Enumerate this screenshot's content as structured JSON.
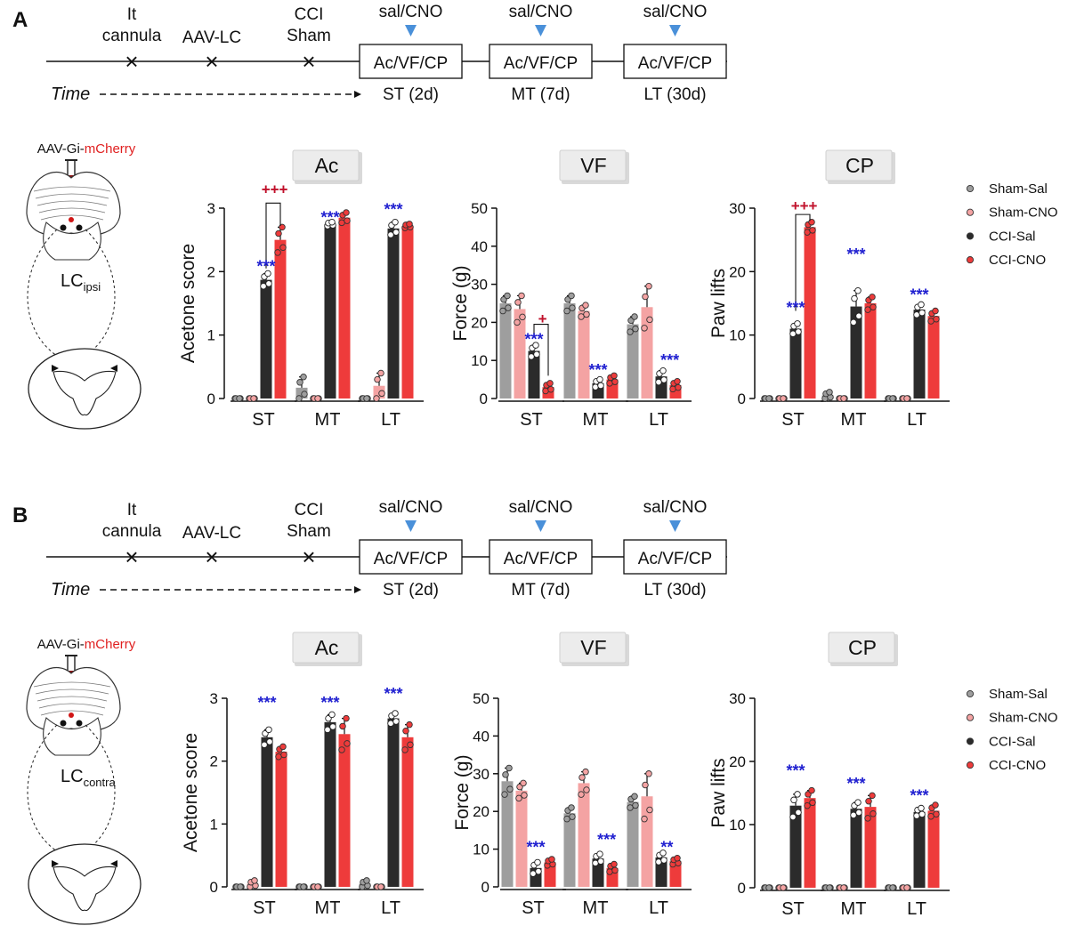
{
  "panels": [
    {
      "letter": "A",
      "timeline": {
        "events": [
          "It\ncannula",
          "AAV-LC",
          "CCI\nSham"
        ],
        "treatment": "sal/CNO",
        "test_box": "Ac/VF/CP",
        "time_label": "Time",
        "timepoints": [
          "ST (2d)",
          "MT (7d)",
          "LT (30d)"
        ]
      },
      "brain": {
        "virus_prefix": "AAV-Gi-",
        "virus_suffix": "mCherry",
        "lc_main": "LC",
        "lc_sub": "ipsi"
      }
    },
    {
      "letter": "B",
      "timeline": {
        "events": [
          "It\ncannula",
          "AAV-LC",
          "CCI\nSham"
        ],
        "treatment": "sal/CNO",
        "test_box": "Ac/VF/CP",
        "time_label": "Time",
        "timepoints": [
          "ST (2d)",
          "MT (7d)",
          "LT (30d)"
        ]
      },
      "brain": {
        "virus_prefix": "AAV-Gi-",
        "virus_suffix": "mCherry",
        "lc_main": "LC",
        "lc_sub": "contra"
      }
    }
  ],
  "legend": [
    {
      "label": "Sham-Sal",
      "color": "#9e9e9e"
    },
    {
      "label": "Sham-CNO",
      "color": "#f4a3a3"
    },
    {
      "label": "CCI-Sal",
      "color": "#2b2b2b"
    },
    {
      "label": "CCI-CNO",
      "color": "#ee3b3b"
    }
  ],
  "colors": {
    "sig_blue": "#1f1fd0",
    "sig_red": "#c0102a",
    "arrow": "#4a90d9"
  },
  "chart_data": [
    {
      "panel": "A",
      "title": "Ac",
      "type": "bar",
      "ylabel": "Acetone score",
      "ylim": [
        0,
        3
      ],
      "yticks": [
        0,
        1,
        2,
        3
      ],
      "categories": [
        "ST",
        "MT",
        "LT"
      ],
      "series": [
        {
          "name": "Sham-Sal",
          "values": [
            0,
            0.17,
            0
          ],
          "errors": [
            0,
            0.17,
            0
          ]
        },
        {
          "name": "Sham-CNO",
          "values": [
            0,
            0,
            0.2
          ],
          "errors": [
            0,
            0,
            0.2
          ]
        },
        {
          "name": "CCI-Sal",
          "values": [
            1.87,
            2.75,
            2.68
          ],
          "errors": [
            0.1,
            0.03,
            0.1
          ]
        },
        {
          "name": "CCI-CNO",
          "values": [
            2.5,
            2.85,
            2.72
          ],
          "errors": [
            0.2,
            0.08,
            0.03
          ]
        }
      ],
      "annotations": [
        {
          "text": "***",
          "group": 0,
          "bar": 2,
          "value": 2.08,
          "color": "blue"
        },
        {
          "text": "***",
          "group": 1,
          "bar": 2,
          "value": 2.85,
          "color": "blue"
        },
        {
          "text": "***",
          "group": 2,
          "bar": 2,
          "value": 2.98,
          "color": "blue"
        },
        {
          "text": "+++",
          "group": 0,
          "bar": 2.6,
          "value": 3.3,
          "color": "red"
        }
      ],
      "bracket": {
        "group": 0,
        "from": 2,
        "to": 3,
        "value": 3.08,
        "value_left": 2.05,
        "value_right": 2.72
      }
    },
    {
      "panel": "A",
      "title": "VF",
      "type": "bar",
      "ylabel": "Force (g)",
      "ylim": [
        0,
        50
      ],
      "yticks": [
        0,
        10,
        20,
        30,
        40,
        50
      ],
      "categories": [
        "ST",
        "MT",
        "LT"
      ],
      "series": [
        {
          "name": "Sham-Sal",
          "values": [
            25,
            25,
            19.5
          ],
          "errors": [
            2,
            2,
            2
          ]
        },
        {
          "name": "Sham-CNO",
          "values": [
            23.5,
            23,
            24
          ],
          "errors": [
            3.5,
            1.5,
            5.5
          ]
        },
        {
          "name": "CCI-Sal",
          "values": [
            12.5,
            4,
            5.8
          ],
          "errors": [
            1.5,
            1,
            1.5
          ]
        },
        {
          "name": "CCI-CNO",
          "values": [
            3,
            5,
            3.5
          ],
          "errors": [
            1,
            1,
            1
          ]
        }
      ],
      "annotations": [
        {
          "text": "***",
          "group": 0,
          "bar": 2,
          "value": 15.5,
          "color": "blue"
        },
        {
          "text": "***",
          "group": 1,
          "bar": 2,
          "value": 7.5,
          "color": "blue"
        },
        {
          "text": "***",
          "group": 2,
          "bar": 2.6,
          "value": 10,
          "color": "blue"
        },
        {
          "text": "+",
          "group": 0,
          "bar": 2.6,
          "value": 21,
          "color": "red"
        }
      ],
      "bracket": {
        "group": 0,
        "from": 2,
        "to": 3,
        "value": 19.5,
        "value_left": 16,
        "value_right": 6
      }
    },
    {
      "panel": "A",
      "title": "CP",
      "type": "bar",
      "ylabel": "Paw lifts",
      "ylim": [
        0,
        30
      ],
      "yticks": [
        0,
        10,
        20,
        30
      ],
      "categories": [
        "ST",
        "MT",
        "LT"
      ],
      "series": [
        {
          "name": "Sham-Sal",
          "values": [
            0,
            0.5,
            0
          ],
          "errors": [
            0,
            0.5,
            0
          ]
        },
        {
          "name": "Sham-CNO",
          "values": [
            0,
            0,
            0
          ],
          "errors": [
            0,
            0,
            0
          ]
        },
        {
          "name": "CCI-Sal",
          "values": [
            11,
            14.5,
            14
          ],
          "errors": [
            0.8,
            2.5,
            0.8
          ]
        },
        {
          "name": "CCI-CNO",
          "values": [
            27,
            15,
            13
          ],
          "errors": [
            0.8,
            1,
            0.8
          ]
        }
      ],
      "annotations": [
        {
          "text": "***",
          "group": 0,
          "bar": 2,
          "value": 14.3,
          "color": "blue"
        },
        {
          "text": "***",
          "group": 1,
          "bar": 2,
          "value": 22.7,
          "color": "blue"
        },
        {
          "text": "***",
          "group": 2,
          "bar": 2,
          "value": 16.3,
          "color": "blue"
        },
        {
          "text": "+++",
          "group": 0,
          "bar": 2.6,
          "value": 30.4,
          "color": "red"
        }
      ],
      "bracket": {
        "group": 0,
        "from": 2,
        "to": 3,
        "value": 29,
        "value_left": 13.8,
        "value_right": 28
      }
    },
    {
      "panel": "B",
      "title": "Ac",
      "type": "bar",
      "ylabel": "Acetone score",
      "ylim": [
        0,
        3
      ],
      "yticks": [
        0,
        1,
        2,
        3
      ],
      "categories": [
        "ST",
        "MT",
        "LT"
      ],
      "series": [
        {
          "name": "Sham-Sal",
          "values": [
            0,
            0,
            0.05
          ],
          "errors": [
            0,
            0,
            0.05
          ]
        },
        {
          "name": "Sham-CNO",
          "values": [
            0.05,
            0,
            0
          ],
          "errors": [
            0.05,
            0,
            0
          ]
        },
        {
          "name": "CCI-Sal",
          "values": [
            2.38,
            2.62,
            2.68
          ],
          "errors": [
            0.12,
            0.12,
            0.08
          ]
        },
        {
          "name": "CCI-CNO",
          "values": [
            2.15,
            2.43,
            2.38
          ],
          "errors": [
            0.08,
            0.25,
            0.2
          ]
        }
      ],
      "annotations": [
        {
          "text": "***",
          "group": 0,
          "bar": 2,
          "value": 2.93,
          "color": "blue"
        },
        {
          "text": "***",
          "group": 1,
          "bar": 2,
          "value": 2.93,
          "color": "blue"
        },
        {
          "text": "***",
          "group": 2,
          "bar": 2,
          "value": 3.07,
          "color": "blue"
        }
      ]
    },
    {
      "panel": "B",
      "title": "VF",
      "type": "bar",
      "ylabel": "Force (g)",
      "ylim": [
        0,
        50
      ],
      "yticks": [
        0,
        10,
        20,
        30,
        40,
        50
      ],
      "categories": [
        "ST",
        "MT",
        "LT"
      ],
      "series": [
        {
          "name": "Sham-Sal",
          "values": [
            28,
            19.5,
            22.5
          ],
          "errors": [
            3.5,
            1.5,
            1.5
          ]
        },
        {
          "name": "Sham-CNO",
          "values": [
            25.5,
            27.5,
            24
          ],
          "errors": [
            2,
            3,
            6
          ]
        },
        {
          "name": "CCI-Sal",
          "values": [
            5,
            7.5,
            7.8
          ],
          "errors": [
            1.5,
            1.2,
            1.2
          ]
        },
        {
          "name": "CCI-CNO",
          "values": [
            6.5,
            5,
            6.8
          ],
          "errors": [
            0.8,
            1,
            0.8
          ]
        }
      ],
      "annotations": [
        {
          "text": "***",
          "group": 0,
          "bar": 2,
          "value": 10.5,
          "color": "blue"
        },
        {
          "text": "***",
          "group": 1,
          "bar": 2.6,
          "value": 12.5,
          "color": "blue"
        },
        {
          "text": "**",
          "group": 2,
          "bar": 2.4,
          "value": 10.5,
          "color": "blue"
        }
      ]
    },
    {
      "panel": "B",
      "title": "CP",
      "type": "bar",
      "ylabel": "Paw lifts",
      "ylim": [
        0,
        30
      ],
      "yticks": [
        0,
        10,
        20,
        30
      ],
      "categories": [
        "ST",
        "MT",
        "LT"
      ],
      "series": [
        {
          "name": "Sham-Sal",
          "values": [
            0,
            0,
            0
          ],
          "errors": [
            0,
            0,
            0
          ]
        },
        {
          "name": "Sham-CNO",
          "values": [
            0,
            0,
            0
          ],
          "errors": [
            0,
            0,
            0
          ]
        },
        {
          "name": "CCI-Sal",
          "values": [
            13,
            12.5,
            12
          ],
          "errors": [
            1.8,
            1,
            0.6
          ]
        },
        {
          "name": "CCI-CNO",
          "values": [
            14.2,
            12.8,
            12.2
          ],
          "errors": [
            1.2,
            1.8,
            0.9
          ]
        }
      ],
      "annotations": [
        {
          "text": "***",
          "group": 0,
          "bar": 2,
          "value": 18.5,
          "color": "blue"
        },
        {
          "text": "***",
          "group": 1,
          "bar": 2,
          "value": 16.5,
          "color": "blue"
        },
        {
          "text": "***",
          "group": 2,
          "bar": 2,
          "value": 14.6,
          "color": "blue"
        }
      ]
    }
  ]
}
